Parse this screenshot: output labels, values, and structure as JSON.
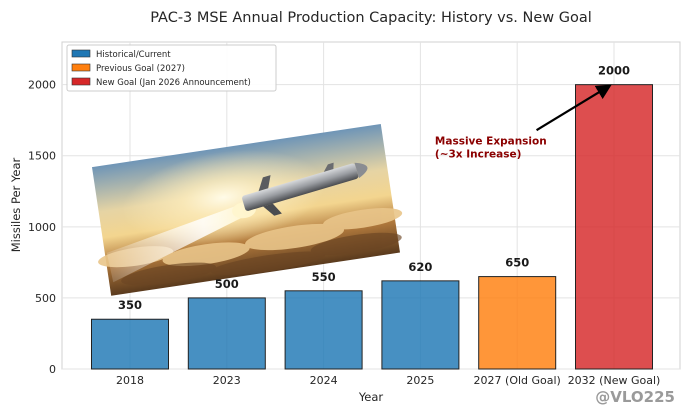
{
  "chart_data": {
    "type": "bar",
    "title": "PAC-3 MSE Annual Production Capacity: History vs. New Goal",
    "xlabel": "Year",
    "ylabel": "Missiles Per Year",
    "ylim": [
      0,
      2300
    ],
    "yticks": [
      0,
      500,
      1000,
      1500,
      2000
    ],
    "grid": true,
    "legend_position": "top-left",
    "categories": [
      "2018",
      "2023",
      "2024",
      "2025",
      "2027 (Old Goal)",
      "2032 (New Goal)"
    ],
    "values": [
      350,
      500,
      550,
      620,
      650,
      2000
    ],
    "data_labels": [
      "350",
      "500",
      "550",
      "620",
      "650",
      "2000"
    ],
    "bar_groups": [
      "historical",
      "historical",
      "historical",
      "historical",
      "previous",
      "new"
    ],
    "legend": [
      {
        "key": "historical",
        "label": "Historical/Current",
        "color": "#1f77b4"
      },
      {
        "key": "previous",
        "label": "Previous Goal (2027)",
        "color": "#ff7f0e"
      },
      {
        "key": "new",
        "label": "New Goal (Jan 2026 Announcement)",
        "color": "#d62728"
      }
    ],
    "annotation": {
      "lines": [
        "Massive Expansion",
        "(~3x Increase)"
      ],
      "color": "#8b0000",
      "text_x_category": 3.15,
      "text_y_value": 1580,
      "arrow_from_category": 4.2,
      "arrow_from_value": 1680,
      "arrow_to_category": 4.95,
      "arrow_to_value": 1990
    }
  },
  "watermark": "@VLO225",
  "inset_image": "missile-launch-photo"
}
